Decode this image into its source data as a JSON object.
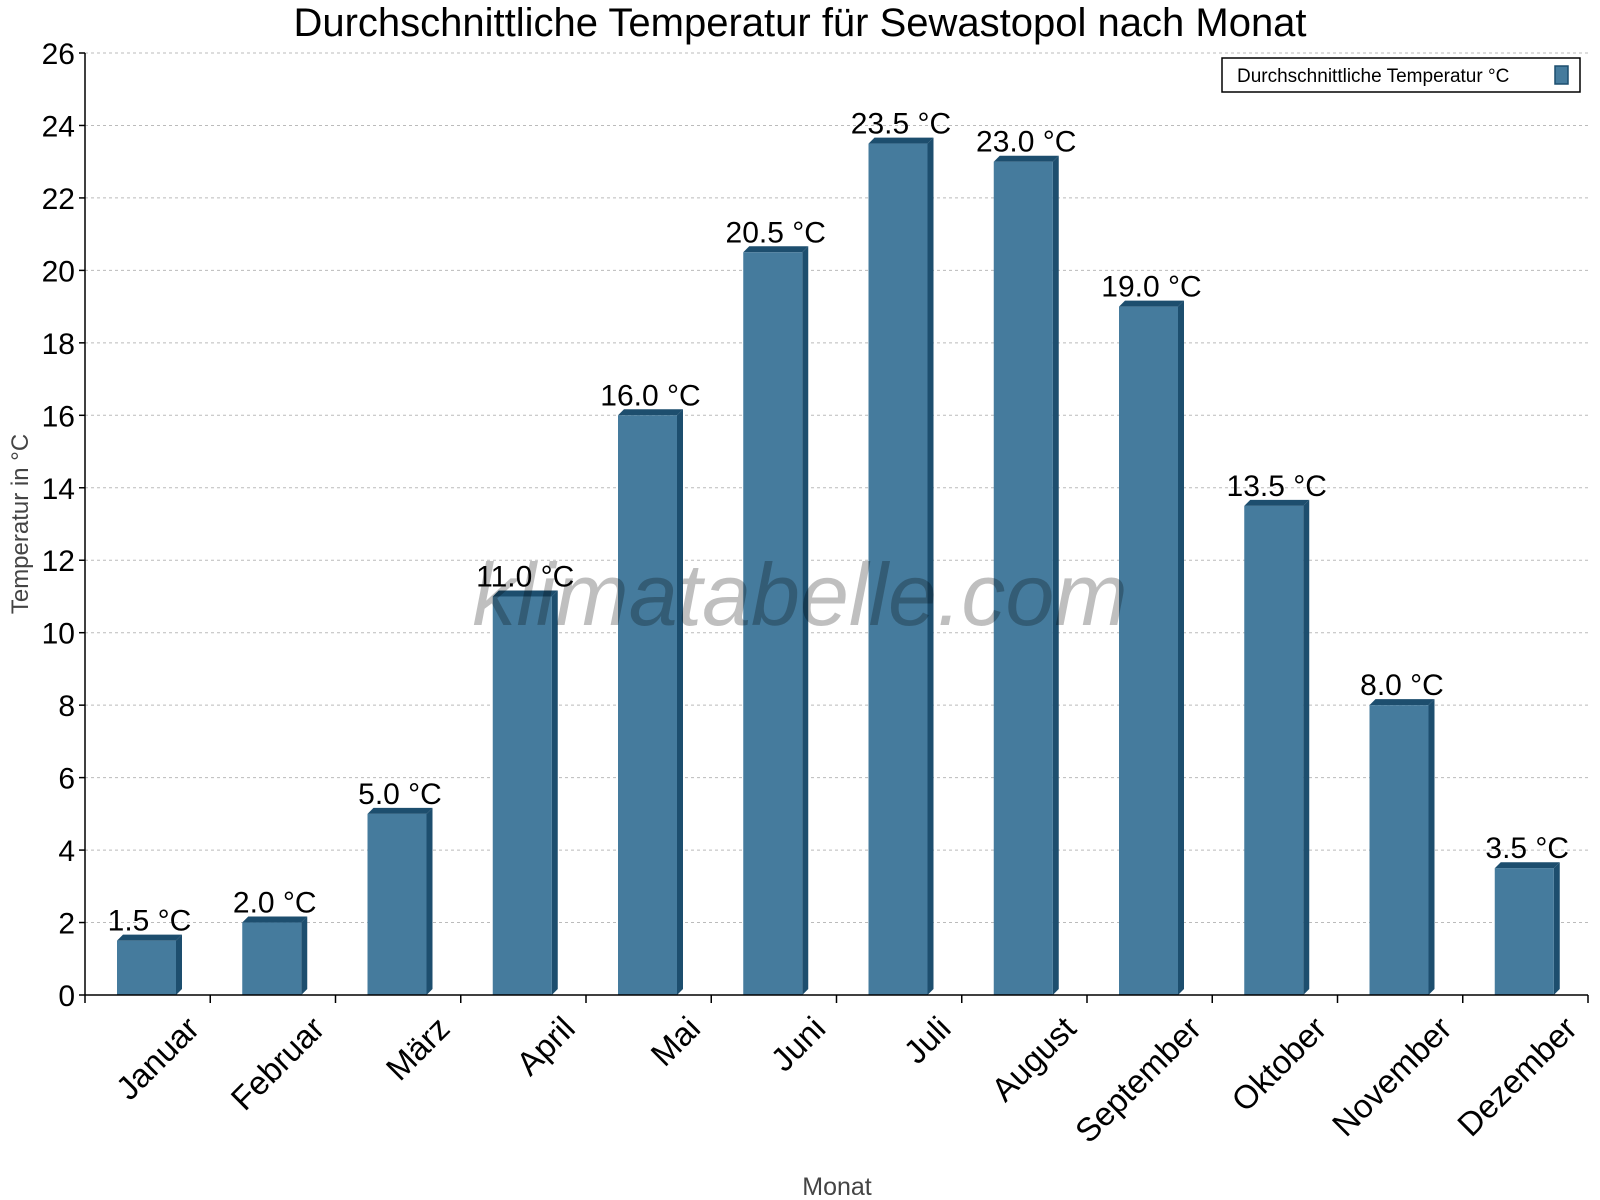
{
  "chart_data": {
    "type": "bar",
    "title": "Durchschnittliche Temperatur für Sewastopol nach Monat",
    "xlabel": "Monat",
    "ylabel": "Temperatur in °C",
    "ylim": [
      0,
      26
    ],
    "yticks": [
      0,
      2,
      4,
      6,
      8,
      10,
      12,
      14,
      16,
      18,
      20,
      22,
      24,
      26
    ],
    "grid": true,
    "legend_position": "top-right",
    "categories": [
      "Januar",
      "Februar",
      "März",
      "April",
      "Mai",
      "Juni",
      "Juli",
      "August",
      "September",
      "Oktober",
      "November",
      "Dezember"
    ],
    "series": [
      {
        "name": "Durchschnittliche Temperatur °C",
        "values": [
          1.5,
          2.0,
          5.0,
          11.0,
          16.0,
          20.5,
          23.5,
          23.0,
          19.0,
          13.5,
          8.0,
          3.5
        ],
        "data_labels": [
          "1.5 °C",
          "2.0 °C",
          "5.0 °C",
          "11.0 °C",
          "16.0 °C",
          "20.5 °C",
          "23.5 °C",
          "23.0 °C",
          "19.0 °C",
          "13.5 °C",
          "8.0 °C",
          "3.5 °C"
        ],
        "color": "#457b9d",
        "side_color": "#1d4e6e"
      }
    ],
    "watermark": "klimatabelle.com"
  }
}
